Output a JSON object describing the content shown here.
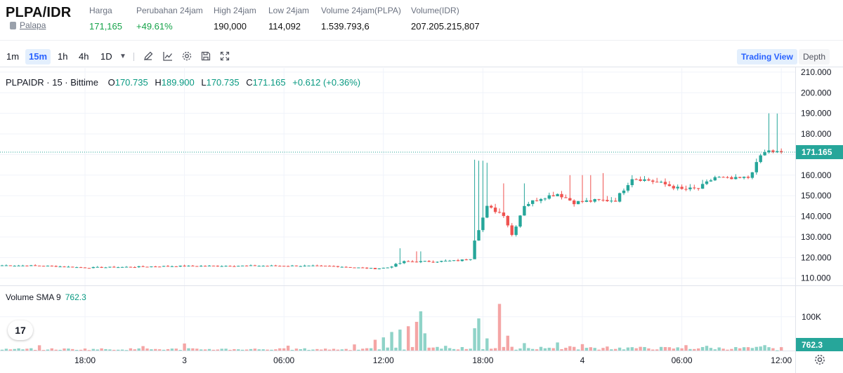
{
  "ticker": {
    "pair": "PLPA/IDR",
    "exchange": "Palapa",
    "stats": [
      {
        "label": "Harga",
        "value": "171,165",
        "green": true
      },
      {
        "label": "Perubahan 24jam",
        "value": "+49.61%",
        "green": true
      },
      {
        "label": "High 24jam",
        "value": "190,000",
        "green": false
      },
      {
        "label": "Low 24jam",
        "value": "114,092",
        "green": false
      },
      {
        "label": "Volume 24jam(PLPA)",
        "value": "1.539.793,6",
        "green": false
      },
      {
        "label": "Volume(IDR)",
        "value": "207.205.215,807",
        "green": false
      }
    ]
  },
  "toolbar": {
    "timeframes": [
      "1m",
      "15m",
      "1h",
      "4h",
      "1D"
    ],
    "active_timeframe": "15m",
    "icons": [
      "dropdown-caret-icon",
      "pencil-icon",
      "indicator-icon",
      "settings-gear-icon",
      "save-icon",
      "fullscreen-icon"
    ],
    "views": [
      "Trading View",
      "Depth"
    ],
    "active_view": "Trading View"
  },
  "legend": {
    "symbol": "PLPAIDR · 15 · Bittime",
    "o_label": "O",
    "o": "170.735",
    "h_label": "H",
    "h": "189.900",
    "l_label": "L",
    "l": "170.735",
    "c_label": "C",
    "c": "171.165",
    "change": "+0.612 (+0.36%)",
    "volume_label": "Volume SMA 9",
    "volume_value": "762.3"
  },
  "branding": {
    "logo": "17"
  },
  "colors": {
    "up": "#26a69a",
    "down": "#ef5350",
    "up_text": "#089981",
    "accent": "#2962ff",
    "vol_up": "#8fd3c8",
    "vol_down": "#f4a5a5",
    "price_line": "#26a69a"
  },
  "chart_data": {
    "type": "candlestick",
    "price_axis": {
      "ticks": [
        110000,
        120000,
        130000,
        140000,
        150000,
        160000,
        170000,
        180000,
        190000,
        200000,
        210000
      ],
      "tick_labels": [
        "110.000",
        "120.000",
        "130.000",
        "140.000",
        "150.000",
        "160.000",
        "170.000",
        "180.000",
        "190.000",
        "200.000",
        "210.000"
      ],
      "range": [
        106500,
        212000
      ]
    },
    "time_axis": {
      "labels": [
        "18:00",
        "3",
        "06:00",
        "12:00",
        "18:00",
        "4",
        "06:00",
        "12:00"
      ],
      "label_bar_index": [
        20,
        44,
        68,
        92,
        116,
        140,
        164,
        188
      ],
      "bars_shown": 189
    },
    "volume_axis": {
      "tick_labels": [
        "100K"
      ],
      "ticks": [
        100000
      ],
      "max": 170000
    },
    "current_price": {
      "value": 171165,
      "label": "171.165"
    },
    "volume_last_label": "762.3",
    "anchors": [
      [
        0,
        116200
      ],
      [
        10,
        116000
      ],
      [
        20,
        115100
      ],
      [
        30,
        115400
      ],
      [
        40,
        115800
      ],
      [
        55,
        116000
      ],
      [
        70,
        116000
      ],
      [
        80,
        115800
      ],
      [
        90,
        114600
      ],
      [
        93,
        115200
      ],
      [
        97,
        118000
      ],
      [
        104,
        118100
      ],
      [
        110,
        118500
      ],
      [
        113,
        119500
      ],
      [
        114,
        129000
      ],
      [
        117,
        144500
      ],
      [
        121,
        141000
      ],
      [
        123,
        131000
      ],
      [
        126,
        145500
      ],
      [
        130,
        149000
      ],
      [
        134,
        151000
      ],
      [
        138,
        146800
      ],
      [
        143,
        147600
      ],
      [
        148,
        147900
      ],
      [
        152,
        158600
      ],
      [
        156,
        157500
      ],
      [
        160,
        155500
      ],
      [
        164,
        153000
      ],
      [
        168,
        153500
      ],
      [
        172,
        159000
      ],
      [
        176,
        158000
      ],
      [
        180,
        158800
      ],
      [
        182,
        165500
      ],
      [
        183,
        169500
      ],
      [
        185,
        172200
      ],
      [
        186,
        170735
      ],
      [
        187,
        171165
      ]
    ],
    "volume_spikes": [
      [
        90,
        32000
      ],
      [
        92,
        39000
      ],
      [
        94,
        55000
      ],
      [
        96,
        62000
      ],
      [
        98,
        72000
      ],
      [
        100,
        85000
      ],
      [
        101,
        116000
      ],
      [
        102,
        51000
      ],
      [
        107,
        14000
      ],
      [
        114,
        66000
      ],
      [
        115,
        95000
      ],
      [
        117,
        36000
      ],
      [
        120,
        138000
      ],
      [
        122,
        44000
      ],
      [
        126,
        22000
      ],
      [
        130,
        11000
      ],
      [
        134,
        24000
      ],
      [
        137,
        13000
      ],
      [
        140,
        19000
      ],
      [
        146,
        12000
      ],
      [
        152,
        10000
      ],
      [
        165,
        16000
      ],
      [
        170,
        14000
      ],
      [
        180,
        10000
      ],
      [
        183,
        12000
      ],
      [
        184,
        16000
      ],
      [
        185,
        10000
      ],
      [
        186,
        7000
      ],
      [
        187,
        800
      ]
    ]
  }
}
